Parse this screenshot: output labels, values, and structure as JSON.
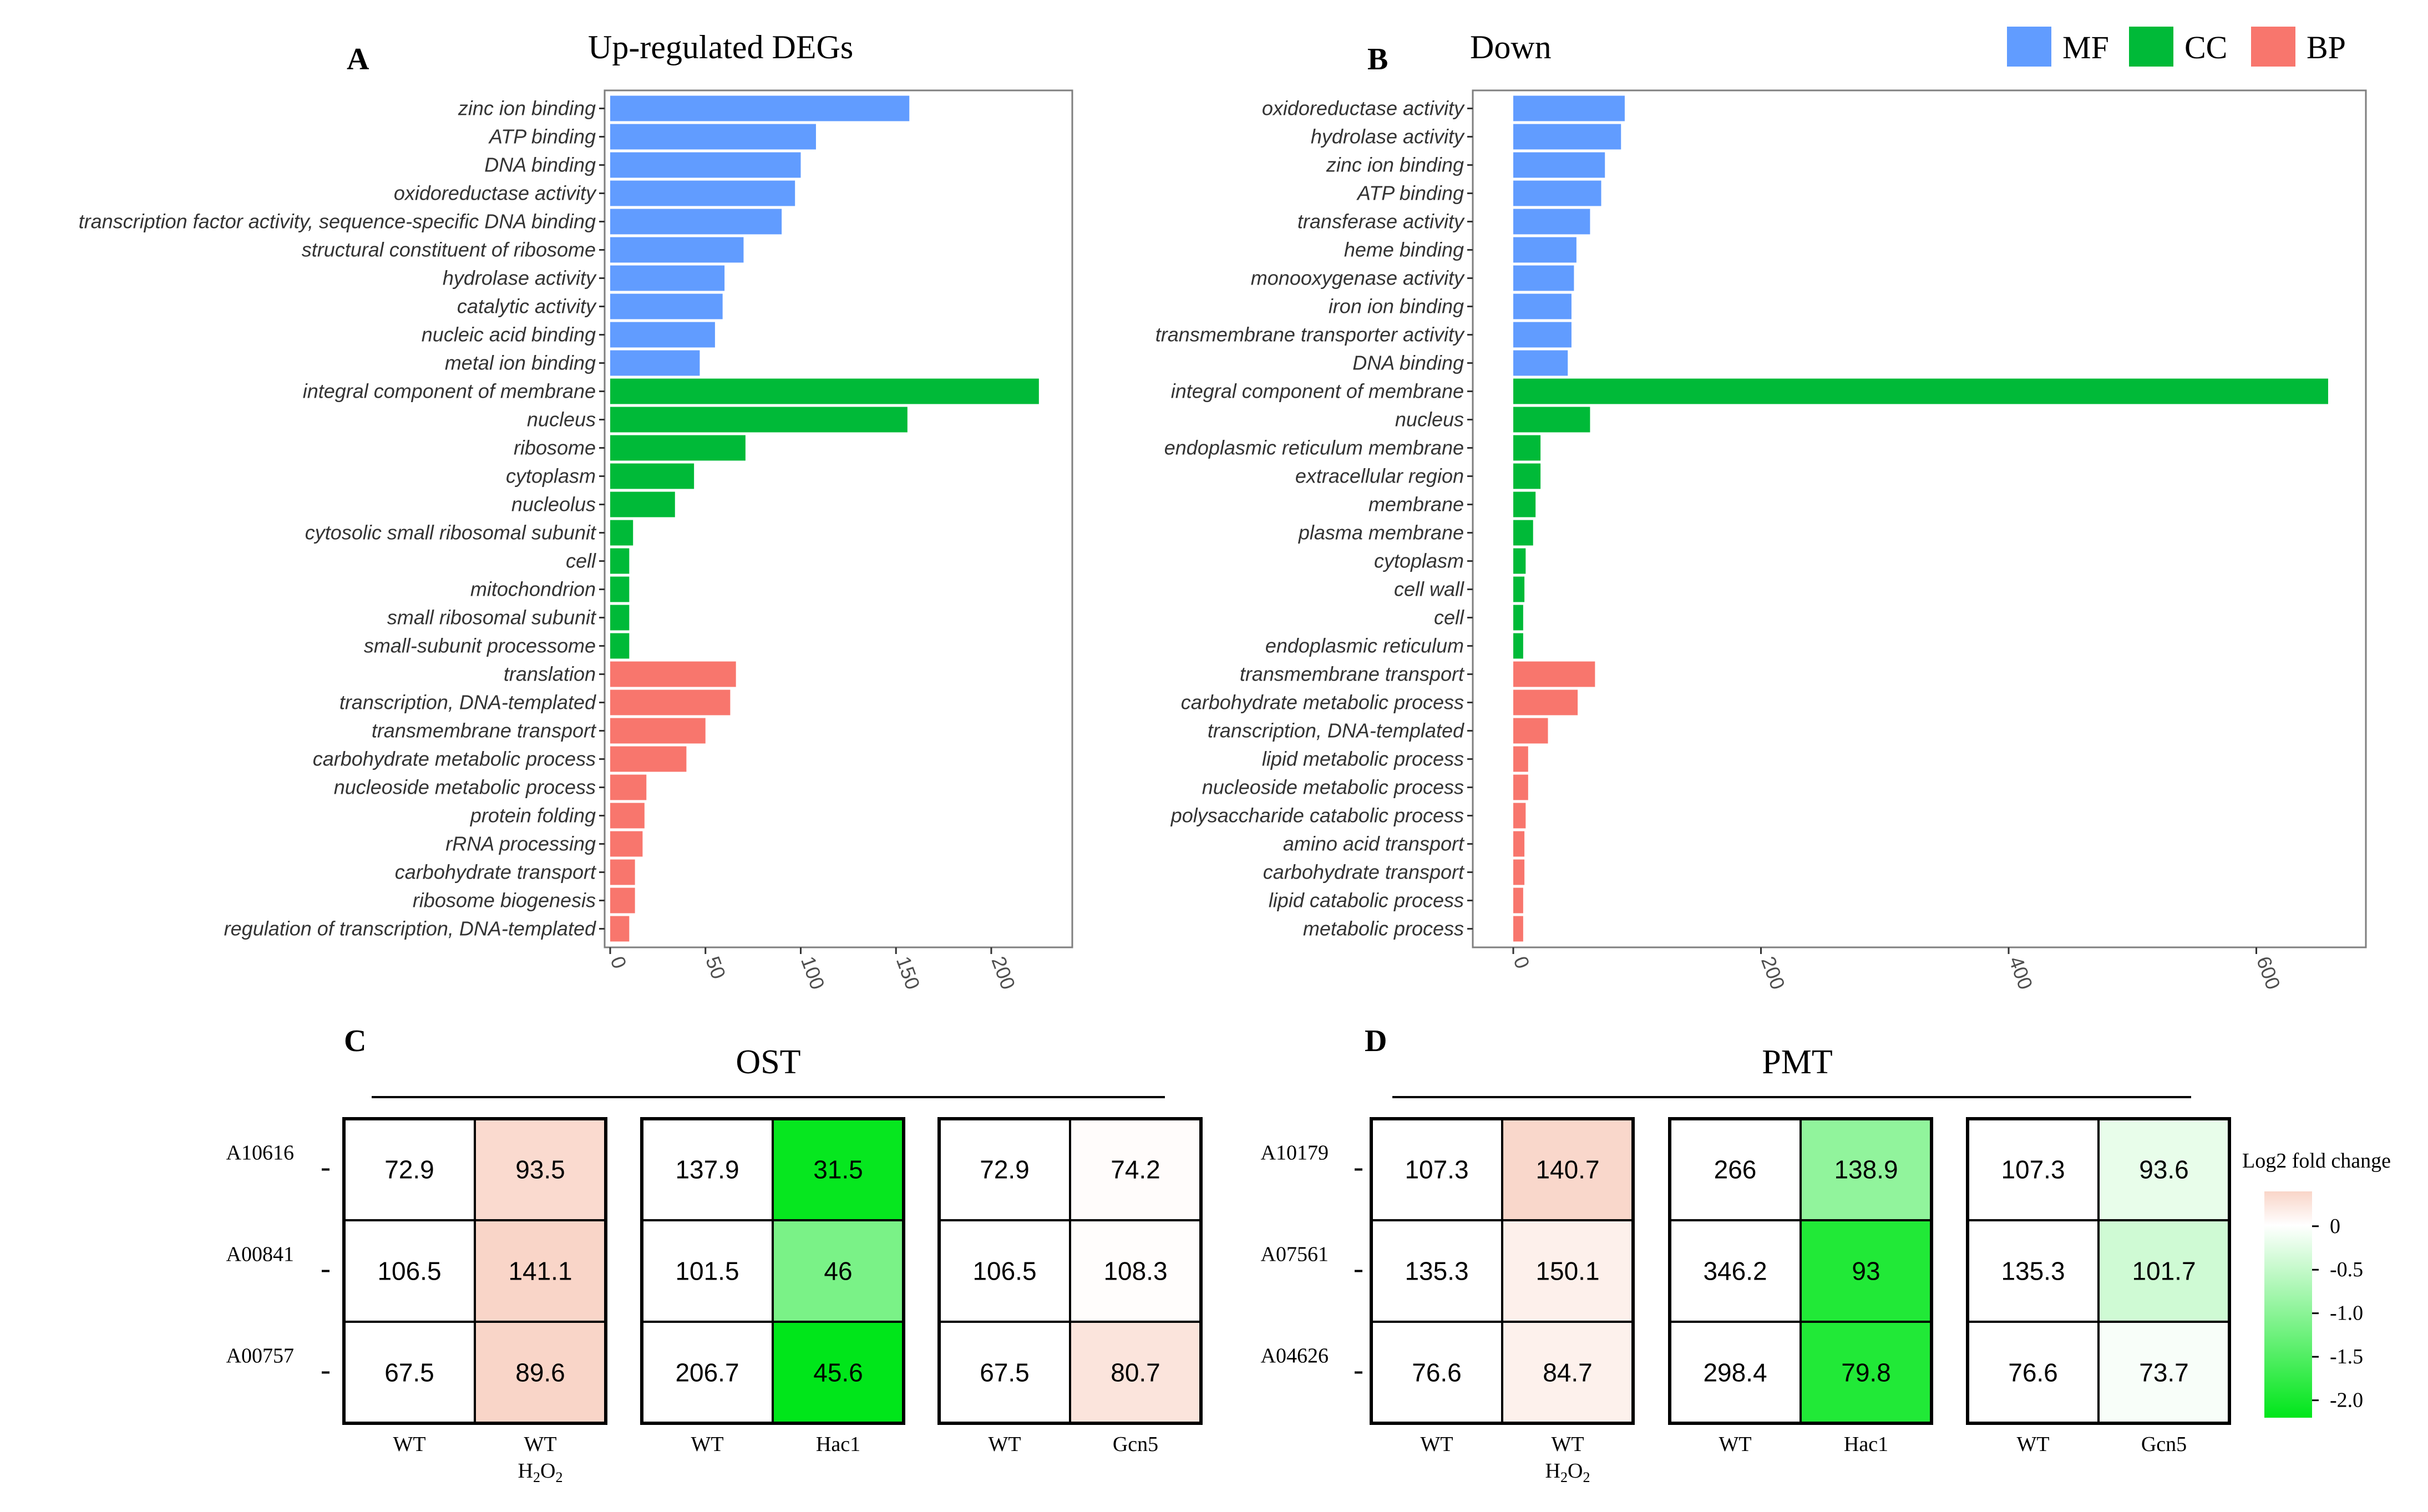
{
  "colors": {
    "MF": "#619CFF",
    "CC": "#00BA38",
    "BP": "#F8766D",
    "heat_pos": "#F9D5C8",
    "heat_zero": "#FFFFFF",
    "heat_neg": "#00E61A"
  },
  "legend": {
    "items": [
      {
        "key": "MF",
        "label": "MF"
      },
      {
        "key": "CC",
        "label": "CC"
      },
      {
        "key": "BP",
        "label": "BP"
      }
    ]
  },
  "chart_data": [
    {
      "id": "A",
      "type": "bar",
      "orientation": "horizontal",
      "panel_letter": "A",
      "title": "Up-regulated DEGs",
      "xlim": [
        0,
        230
      ],
      "xticks": [
        0,
        50,
        100,
        150,
        200
      ],
      "grid": false,
      "categories": [
        {
          "label": "zinc ion binding",
          "value": 157,
          "group": "MF"
        },
        {
          "label": "ATP binding",
          "value": 108,
          "group": "MF"
        },
        {
          "label": "DNA binding",
          "value": 100,
          "group": "MF"
        },
        {
          "label": "oxidoreductase activity",
          "value": 97,
          "group": "MF"
        },
        {
          "label": "transcription factor activity, sequence-specific DNA binding",
          "value": 90,
          "group": "MF"
        },
        {
          "label": "structural constituent of ribosome",
          "value": 70,
          "group": "MF"
        },
        {
          "label": "hydrolase activity",
          "value": 60,
          "group": "MF"
        },
        {
          "label": "catalytic activity",
          "value": 59,
          "group": "MF"
        },
        {
          "label": "nucleic acid binding",
          "value": 55,
          "group": "MF"
        },
        {
          "label": "metal ion binding",
          "value": 47,
          "group": "MF"
        },
        {
          "label": "integral component of membrane",
          "value": 225,
          "group": "CC"
        },
        {
          "label": "nucleus",
          "value": 156,
          "group": "CC"
        },
        {
          "label": "ribosome",
          "value": 71,
          "group": "CC"
        },
        {
          "label": "cytoplasm",
          "value": 44,
          "group": "CC"
        },
        {
          "label": "nucleolus",
          "value": 34,
          "group": "CC"
        },
        {
          "label": "cytosolic small ribosomal subunit",
          "value": 12,
          "group": "CC"
        },
        {
          "label": "cell",
          "value": 10,
          "group": "CC"
        },
        {
          "label": "mitochondrion",
          "value": 10,
          "group": "CC"
        },
        {
          "label": "small ribosomal subunit",
          "value": 10,
          "group": "CC"
        },
        {
          "label": "small-subunit processome",
          "value": 10,
          "group": "CC"
        },
        {
          "label": "translation",
          "value": 66,
          "group": "BP"
        },
        {
          "label": "transcription, DNA-templated",
          "value": 63,
          "group": "BP"
        },
        {
          "label": "transmembrane transport",
          "value": 50,
          "group": "BP"
        },
        {
          "label": "carbohydrate metabolic process",
          "value": 40,
          "group": "BP"
        },
        {
          "label": "nucleoside metabolic process",
          "value": 19,
          "group": "BP"
        },
        {
          "label": "protein folding",
          "value": 18,
          "group": "BP"
        },
        {
          "label": "rRNA processing",
          "value": 17,
          "group": "BP"
        },
        {
          "label": "carbohydrate transport",
          "value": 13,
          "group": "BP"
        },
        {
          "label": "ribosome biogenesis",
          "value": 13,
          "group": "BP"
        },
        {
          "label": "regulation of transcription, DNA-templated",
          "value": 10,
          "group": "BP"
        }
      ]
    },
    {
      "id": "B",
      "type": "bar",
      "orientation": "horizontal",
      "panel_letter": "B",
      "title": "Down",
      "xlim": [
        0,
        690
      ],
      "xticks": [
        0,
        200,
        400,
        600
      ],
      "grid": false,
      "categories": [
        {
          "label": "oxidoreductase activity",
          "value": 90,
          "group": "MF"
        },
        {
          "label": "hydrolase activity",
          "value": 87,
          "group": "MF"
        },
        {
          "label": "zinc ion binding",
          "value": 74,
          "group": "MF"
        },
        {
          "label": "ATP binding",
          "value": 71,
          "group": "MF"
        },
        {
          "label": "transferase activity",
          "value": 62,
          "group": "MF"
        },
        {
          "label": "heme binding",
          "value": 51,
          "group": "MF"
        },
        {
          "label": "monooxygenase activity",
          "value": 49,
          "group": "MF"
        },
        {
          "label": "iron ion binding",
          "value": 47,
          "group": "MF"
        },
        {
          "label": "transmembrane transporter activity",
          "value": 47,
          "group": "MF"
        },
        {
          "label": "DNA binding",
          "value": 44,
          "group": "MF"
        },
        {
          "label": "integral component of membrane",
          "value": 658,
          "group": "CC"
        },
        {
          "label": "nucleus",
          "value": 62,
          "group": "CC"
        },
        {
          "label": "endoplasmic reticulum membrane",
          "value": 22,
          "group": "CC"
        },
        {
          "label": "extracellular region",
          "value": 22,
          "group": "CC"
        },
        {
          "label": "membrane",
          "value": 18,
          "group": "CC"
        },
        {
          "label": "plasma membrane",
          "value": 16,
          "group": "CC"
        },
        {
          "label": "cytoplasm",
          "value": 10,
          "group": "CC"
        },
        {
          "label": "cell wall",
          "value": 9,
          "group": "CC"
        },
        {
          "label": "cell",
          "value": 8,
          "group": "CC"
        },
        {
          "label": "endoplasmic reticulum",
          "value": 8,
          "group": "CC"
        },
        {
          "label": "transmembrane transport",
          "value": 66,
          "group": "BP"
        },
        {
          "label": "carbohydrate metabolic process",
          "value": 52,
          "group": "BP"
        },
        {
          "label": "transcription, DNA-templated",
          "value": 28,
          "group": "BP"
        },
        {
          "label": "lipid metabolic process",
          "value": 12,
          "group": "BP"
        },
        {
          "label": "nucleoside metabolic process",
          "value": 12,
          "group": "BP"
        },
        {
          "label": "polysaccharide catabolic process",
          "value": 10,
          "group": "BP"
        },
        {
          "label": "amino acid transport",
          "value": 9,
          "group": "BP"
        },
        {
          "label": "carbohydrate transport",
          "value": 9,
          "group": "BP"
        },
        {
          "label": "lipid catabolic process",
          "value": 8,
          "group": "BP"
        },
        {
          "label": "metabolic process",
          "value": 8,
          "group": "BP"
        }
      ]
    },
    {
      "id": "C",
      "type": "heatmap",
      "panel_letter": "C",
      "title": "OST",
      "rows": [
        "A10616",
        "A00841",
        "A00757"
      ],
      "blocks": [
        {
          "columns": [
            {
              "label": "WT",
              "sub": ""
            },
            {
              "label": "WT",
              "sub": "H2O2"
            }
          ],
          "values": [
            [
              72.9,
              93.5
            ],
            [
              106.5,
              141.1
            ],
            [
              67.5,
              89.6
            ]
          ],
          "log2fc": [
            [
              0,
              0.36
            ],
            [
              0,
              0.41
            ],
            [
              0,
              0.41
            ]
          ]
        },
        {
          "columns": [
            {
              "label": "WT",
              "sub": ""
            },
            {
              "label": "Hac1",
              "sub": ""
            }
          ],
          "values": [
            [
              137.9,
              31.5
            ],
            [
              101.5,
              46
            ],
            [
              206.7,
              45.6
            ]
          ],
          "log2fc": [
            [
              0,
              -2.13
            ],
            [
              0,
              -1.14
            ],
            [
              0,
              -2.18
            ]
          ]
        },
        {
          "columns": [
            {
              "label": "WT",
              "sub": ""
            },
            {
              "label": "Gcn5",
              "sub": ""
            }
          ],
          "values": [
            [
              72.9,
              74.2
            ],
            [
              106.5,
              108.3
            ],
            [
              67.5,
              80.7
            ]
          ],
          "log2fc": [
            [
              0,
              0.03
            ],
            [
              0,
              0.02
            ],
            [
              0,
              0.26
            ]
          ]
        }
      ]
    },
    {
      "id": "D",
      "type": "heatmap",
      "panel_letter": "D",
      "title": "PMT",
      "rows": [
        "A10179",
        "A07561",
        "A04626"
      ],
      "blocks": [
        {
          "columns": [
            {
              "label": "WT",
              "sub": ""
            },
            {
              "label": "WT",
              "sub": "H2O2"
            }
          ],
          "values": [
            [
              107.3,
              140.7
            ],
            [
              135.3,
              150.1
            ],
            [
              76.6,
              84.7
            ]
          ],
          "log2fc": [
            [
              0,
              0.39
            ],
            [
              0,
              0.15
            ],
            [
              0,
              0.14
            ]
          ]
        },
        {
          "columns": [
            {
              "label": "WT",
              "sub": ""
            },
            {
              "label": "Hac1",
              "sub": ""
            }
          ],
          "values": [
            [
              266,
              138.9
            ],
            [
              346.2,
              93
            ],
            [
              298.4,
              79.8
            ]
          ],
          "log2fc": [
            [
              0,
              -0.94
            ],
            [
              0,
              -1.9
            ],
            [
              0,
              -1.9
            ]
          ]
        },
        {
          "columns": [
            {
              "label": "WT",
              "sub": ""
            },
            {
              "label": "Gcn5",
              "sub": ""
            }
          ],
          "values": [
            [
              107.3,
              93.6
            ],
            [
              135.3,
              101.7
            ],
            [
              76.6,
              73.7
            ]
          ],
          "log2fc": [
            [
              0,
              -0.2
            ],
            [
              0,
              -0.41
            ],
            [
              0,
              -0.06
            ]
          ]
        }
      ],
      "colorbar": {
        "title": "Log2 fold change",
        "ticks": [
          "0",
          "-0.5",
          "-1.0",
          "-1.5",
          "-2.0"
        ],
        "tick_values": [
          0,
          -0.5,
          -1.0,
          -1.5,
          -2.0
        ],
        "range": [
          0.4,
          -2.2
        ]
      }
    }
  ]
}
